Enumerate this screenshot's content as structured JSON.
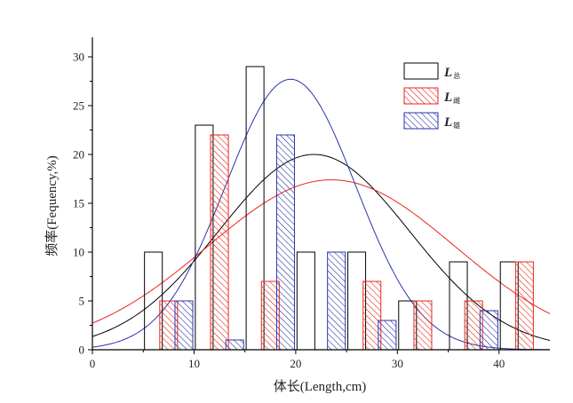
{
  "chart_data": {
    "type": "bar",
    "xlabel": "体长(Length,cm)",
    "ylabel": "频率(Fequency,%)",
    "xlim": [
      0,
      45
    ],
    "ylim": [
      0,
      32
    ],
    "xticks": [
      0,
      10,
      20,
      30,
      40
    ],
    "yticks": [
      0,
      5,
      10,
      15,
      20,
      25,
      30
    ],
    "grid": false,
    "legend_position": "top-right",
    "series": [
      {
        "name": "L总",
        "legend_main": "L",
        "legend_sub": "总",
        "style": "hollow",
        "color": "#000000",
        "bins": [
          {
            "x": 6,
            "value": 10
          },
          {
            "x": 11,
            "value": 23
          },
          {
            "x": 16,
            "value": 29
          },
          {
            "x": 21,
            "value": 10
          },
          {
            "x": 26,
            "value": 10
          },
          {
            "x": 31,
            "value": 5
          },
          {
            "x": 36,
            "value": 9
          },
          {
            "x": 41,
            "value": 9
          }
        ],
        "curve": {
          "mean": 21.8,
          "sd": 9.4,
          "peak": 20
        }
      },
      {
        "name": "L雌",
        "legend_main": "L",
        "legend_sub": "雌",
        "style": "hatched",
        "color": "#e8271c",
        "bins": [
          {
            "x": 7.5,
            "value": 5
          },
          {
            "x": 12.5,
            "value": 22
          },
          {
            "x": 17.5,
            "value": 7
          },
          {
            "x": 27.5,
            "value": 7
          },
          {
            "x": 32.5,
            "value": 5
          },
          {
            "x": 37.5,
            "value": 5
          },
          {
            "x": 42.5,
            "value": 9
          }
        ],
        "curve": {
          "mean": 23.5,
          "sd": 12.2,
          "peak": 17.4
        }
      },
      {
        "name": "L雄",
        "legend_main": "L",
        "legend_sub": "雄",
        "style": "hatched",
        "color": "#2a35a8",
        "bins": [
          {
            "x": 9,
            "value": 5
          },
          {
            "x": 14,
            "value": 1
          },
          {
            "x": 19,
            "value": 22
          },
          {
            "x": 24,
            "value": 10
          },
          {
            "x": 29,
            "value": 3
          },
          {
            "x": 39,
            "value": 4
          }
        ],
        "curve": {
          "mean": 19.5,
          "sd": 6.4,
          "peak": 27.7
        }
      }
    ],
    "bar_width": 1.75
  }
}
